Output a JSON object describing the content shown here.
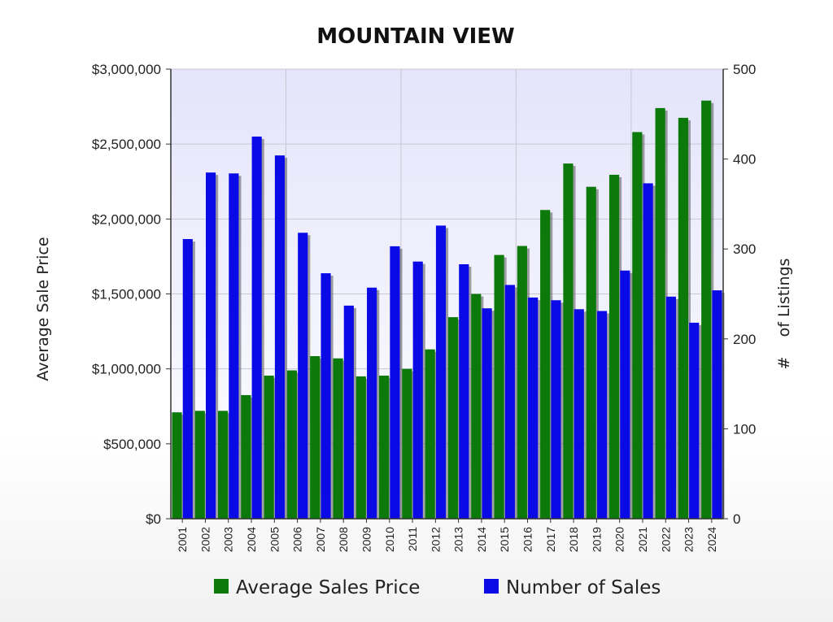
{
  "chart_data": {
    "type": "bar",
    "title": "MOUNTAIN VIEW",
    "ylabel": "Average Sale Price",
    "y2label": "#    of Listings",
    "xlabel": "",
    "categories": [
      "2001",
      "2002",
      "2003",
      "2004",
      "2005",
      "2006",
      "2007",
      "2008",
      "2009",
      "2010",
      "2011",
      "2012",
      "2013",
      "2014",
      "2015",
      "2016",
      "2017",
      "2018",
      "2019",
      "2020",
      "2021",
      "2022",
      "2023",
      "2024"
    ],
    "ylim": [
      0,
      3000000
    ],
    "y2lim": [
      0,
      500
    ],
    "y_ticks": [
      "$0",
      "$500,000",
      "$1,000,000",
      "$1,500,000",
      "$2,000,000",
      "$2,500,000",
      "$3,000,000"
    ],
    "y2_ticks": [
      "0",
      "100",
      "200",
      "300",
      "400",
      "500"
    ],
    "grid": true,
    "legend_position": "bottom",
    "series": [
      {
        "name": "Average Sales Price",
        "axis": "left",
        "color": "#0b7a0b",
        "values": [
          710000,
          720000,
          720000,
          825000,
          955000,
          990000,
          1085000,
          1070000,
          950000,
          955000,
          1000000,
          1130000,
          1345000,
          1500000,
          1760000,
          1820000,
          2060000,
          2370000,
          2215000,
          2295000,
          2580000,
          2740000,
          2675000,
          2790000
        ]
      },
      {
        "name": "Number of Sales",
        "axis": "right",
        "color": "#0a0ae6",
        "values": [
          311,
          385,
          384,
          425,
          404,
          318,
          273,
          237,
          257,
          303,
          286,
          326,
          283,
          234,
          260,
          246,
          243,
          233,
          231,
          276,
          373,
          247,
          218,
          254
        ]
      }
    ]
  }
}
